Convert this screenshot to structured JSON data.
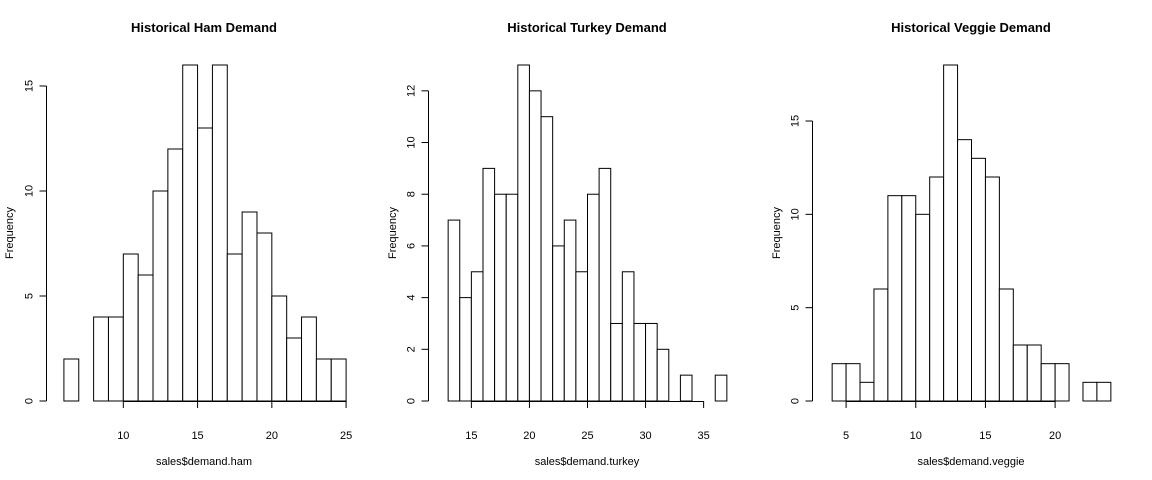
{
  "chart_data": [
    {
      "type": "bar",
      "title": "Historical Ham Demand",
      "xlabel": "sales$demand.ham",
      "ylabel": "Frequency",
      "bin_edges": [
        6,
        7,
        8,
        9,
        10,
        11,
        12,
        13,
        14,
        15,
        16,
        17,
        18,
        19,
        20,
        21,
        22,
        23,
        24,
        25
      ],
      "values": [
        2,
        0,
        4,
        4,
        7,
        6,
        10,
        12,
        16,
        13,
        16,
        7,
        9,
        8,
        5,
        3,
        4,
        2,
        2
      ],
      "xticks": [
        10,
        15,
        20,
        25
      ],
      "yticks": [
        0,
        5,
        10,
        15
      ],
      "xlim": [
        5.4,
        25.6
      ],
      "ylim": [
        0,
        16
      ]
    },
    {
      "type": "bar",
      "title": "Historical Turkey Demand",
      "xlabel": "sales$demand.turkey",
      "ylabel": "Frequency",
      "bin_edges": [
        13,
        14,
        15,
        16,
        17,
        18,
        19,
        20,
        21,
        22,
        23,
        24,
        25,
        26,
        27,
        28,
        29,
        30,
        31,
        32,
        33,
        34,
        35,
        36,
        37
      ],
      "values": [
        7,
        4,
        5,
        9,
        8,
        8,
        13,
        12,
        11,
        6,
        7,
        5,
        8,
        9,
        3,
        5,
        3,
        3,
        2,
        0,
        1,
        0,
        0,
        1
      ],
      "xticks": [
        15,
        20,
        25,
        30,
        35
      ],
      "yticks": [
        0,
        2,
        4,
        6,
        8,
        10,
        12
      ],
      "xlim": [
        12.04,
        37.96
      ],
      "ylim": [
        0,
        13
      ]
    },
    {
      "type": "bar",
      "title": "Historical Veggie Demand",
      "xlabel": "sales$demand.veggie",
      "ylabel": "Frequency",
      "bin_edges": [
        4,
        5,
        6,
        7,
        8,
        9,
        10,
        11,
        12,
        13,
        14,
        15,
        16,
        17,
        18,
        19,
        20,
        21,
        22,
        23,
        24
      ],
      "values": [
        2,
        2,
        1,
        6,
        11,
        11,
        10,
        12,
        18,
        14,
        13,
        12,
        6,
        3,
        3,
        2,
        2,
        0,
        1,
        1
      ],
      "xticks": [
        5,
        10,
        15,
        20
      ],
      "yticks": [
        0,
        5,
        10,
        15
      ],
      "xlim": [
        3.2,
        24.8
      ],
      "ylim": [
        0,
        18
      ]
    }
  ]
}
